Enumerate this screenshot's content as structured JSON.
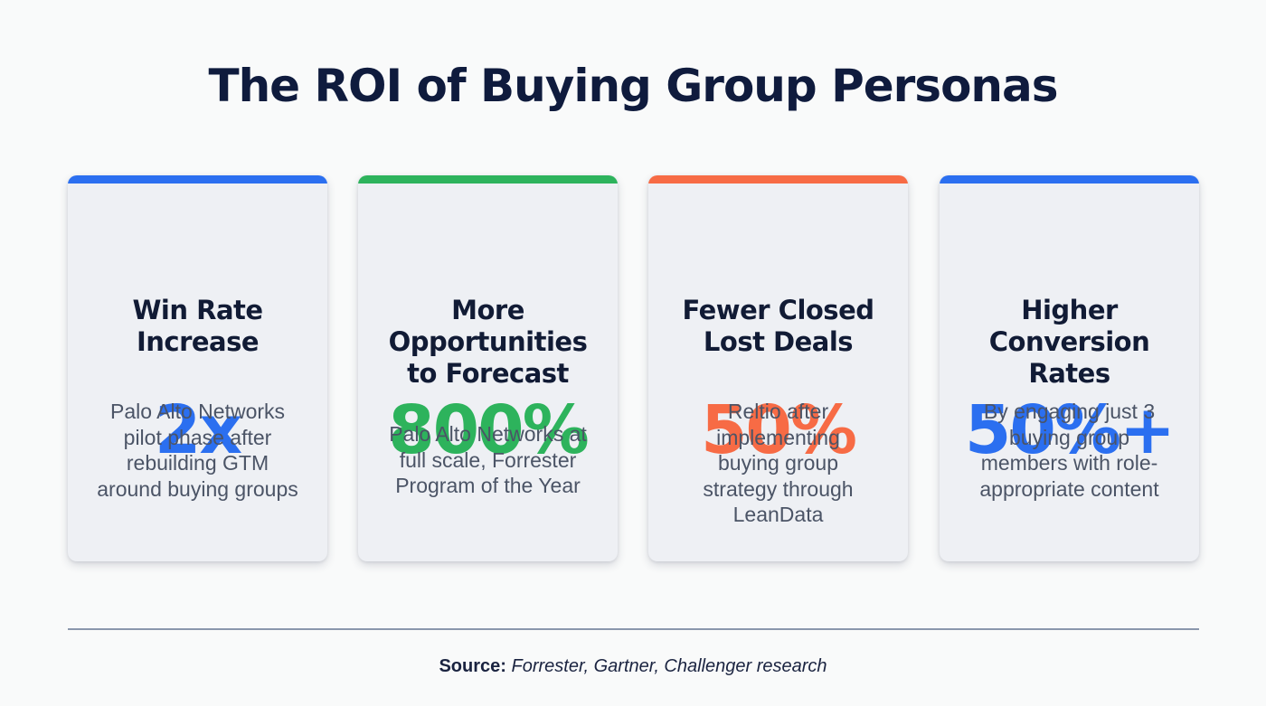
{
  "title": "The ROI of Buying Group Personas",
  "cards": [
    {
      "stat": "2x",
      "heading": "Win Rate Increase",
      "description": "Palo Alto Networks pilot phase after rebuilding GTM around buying groups",
      "accent_color": "#2b6ff0"
    },
    {
      "stat": "800%",
      "heading": "More Opportunities to Forecast",
      "description": "Palo Alto Networks at full scale, Forrester Program of the Year",
      "accent_color": "#2db35c"
    },
    {
      "stat": "50%",
      "heading": "Fewer Closed Lost Deals",
      "description": "Reltio after implementing buying group strategy through LeanData",
      "accent_color": "#f76b45"
    },
    {
      "stat": "50%+",
      "heading": "Higher Conversion Rates",
      "description": "By engaging just 3 buying group members with role-appropriate content",
      "accent_color": "#2b6ff0"
    }
  ],
  "source": {
    "label": "Source:",
    "text": "Forrester, Gartner, Challenger research"
  }
}
